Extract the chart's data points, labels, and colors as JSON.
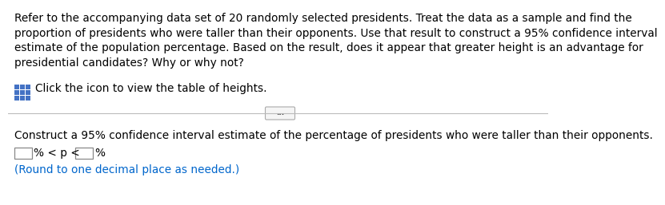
{
  "bg_color": "#ffffff",
  "paragraph_text": "Refer to the accompanying data set of 20 randomly selected presidents. Treat the data as a sample and find the\nproportion of presidents who were taller than their opponents. Use that result to construct a 95% confidence interval\nestimate of the population percentage. Based on the result, does it appear that greater height is an advantage for\npresidential candidates? Why or why not?",
  "icon_text": "Click the icon to view the table of heights.",
  "construct_text": "Construct a 95% confidence interval estimate of the percentage of presidents who were taller than their opponents.",
  "formula_mid": "% < p <",
  "formula_end": "%",
  "round_note": "(Round to one decimal place as needed.)",
  "main_font_size": 9.8,
  "note_color": "#0066cc",
  "icon_color": "#4472c4",
  "text_color": "#000000",
  "divider_color": "#bbbbbb",
  "box_edge_color": "#888888",
  "btn_edge_color": "#aaaaaa",
  "btn_face_color": "#f5f5f5",
  "btn_text_color": "#555555"
}
